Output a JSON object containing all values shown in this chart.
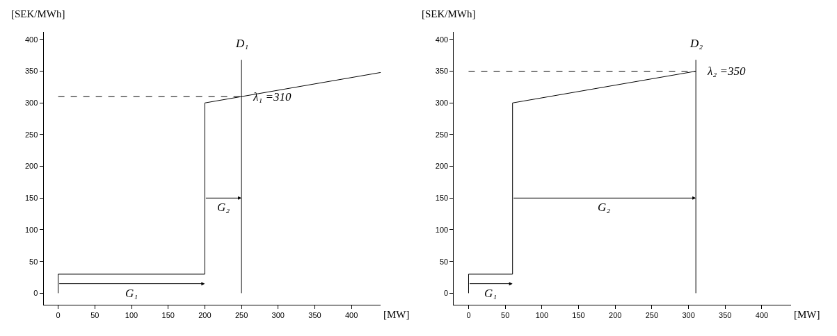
{
  "chart_data": [
    {
      "type": "line",
      "ylabel": "[SEK/MWh]",
      "xlabel": "[MW]",
      "xlim": [
        -20,
        440
      ],
      "ylim": [
        -18,
        412
      ],
      "xticks": [
        0,
        50,
        100,
        150,
        200,
        250,
        300,
        350,
        400
      ],
      "yticks": [
        0,
        50,
        100,
        150,
        200,
        250,
        300,
        350,
        400
      ],
      "grid": false,
      "series": [
        {
          "color": "#000000",
          "x": [
            0,
            0,
            200,
            200,
            440
          ],
          "values": [
            0,
            30,
            30,
            300,
            348
          ]
        },
        {
          "color": "#000000",
          "x": [
            250,
            250
          ],
          "values": [
            0,
            368
          ]
        },
        {
          "color": "#000000",
          "x": [
            0,
            250
          ],
          "values": [
            310,
            310
          ],
          "line_style": "dashed"
        }
      ],
      "annotations": [
        "D₁",
        "λ₁ =310",
        "G₁",
        "G₂"
      ]
    },
    {
      "type": "line",
      "ylabel": "[SEK/MWh]",
      "xlabel": "[MW]",
      "xlim": [
        -20,
        440
      ],
      "ylim": [
        -18,
        412
      ],
      "xticks": [
        0,
        50,
        100,
        150,
        200,
        250,
        300,
        350,
        400
      ],
      "yticks": [
        0,
        50,
        100,
        150,
        200,
        250,
        300,
        350,
        400
      ],
      "grid": false,
      "series": [
        {
          "color": "#000000",
          "x": [
            0,
            0,
            60,
            60,
            310
          ],
          "values": [
            0,
            30,
            30,
            300,
            350
          ]
        },
        {
          "color": "#000000",
          "x": [
            310,
            310
          ],
          "values": [
            0,
            368
          ]
        },
        {
          "color": "#000000",
          "x": [
            0,
            310
          ],
          "values": [
            350,
            350
          ],
          "line_style": "dashed"
        }
      ],
      "annotations": [
        "D₂",
        "λ₂ =350",
        "G₁",
        "G₂"
      ]
    }
  ]
}
